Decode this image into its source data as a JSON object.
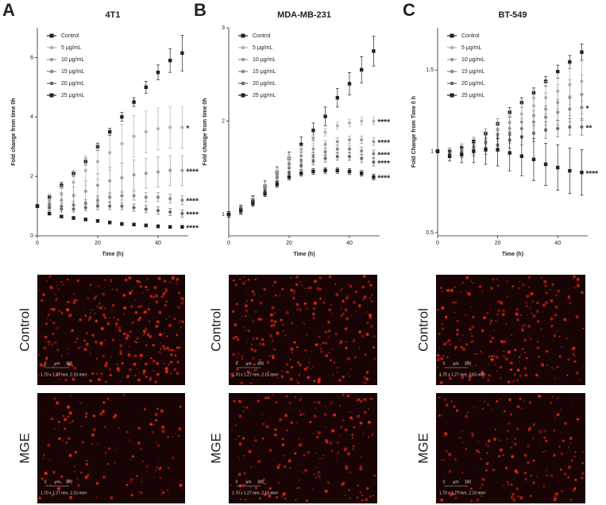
{
  "chart_data": [
    {
      "type": "line",
      "panel": "A",
      "title": "4T1",
      "x_label": "Time (h)",
      "y_label": "Fold change from time 0h",
      "x": [
        0,
        4,
        8,
        12,
        16,
        20,
        24,
        28,
        32,
        36,
        40,
        44,
        48
      ],
      "xlim": [
        0,
        50
      ],
      "xticks": [
        0,
        20,
        40
      ],
      "ylim": [
        0,
        7
      ],
      "yticks": [
        0,
        2,
        4,
        6
      ],
      "series": [
        {
          "name": "Control",
          "color": "#222222",
          "marker": "square",
          "values": [
            1,
            1.3,
            1.7,
            2.1,
            2.5,
            3.0,
            3.5,
            4.0,
            4.5,
            5.0,
            5.5,
            5.9,
            6.15
          ],
          "errors": [
            0.05,
            0.1,
            0.1,
            0.1,
            0.12,
            0.12,
            0.12,
            0.15,
            0.15,
            0.2,
            0.25,
            0.4,
            0.6
          ]
        },
        {
          "name": "5 μg/mL",
          "color": "#b0b0b0",
          "marker": "circle",
          "values": [
            1,
            1.2,
            1.4,
            1.8,
            2.2,
            2.5,
            2.8,
            3.1,
            3.35,
            3.5,
            3.6,
            3.65,
            3.65
          ],
          "errors": [
            0.05,
            0.2,
            0.3,
            0.4,
            0.5,
            0.6,
            0.6,
            0.65,
            0.7,
            0.7,
            0.7,
            0.7,
            0.7
          ],
          "annotation": "*"
        },
        {
          "name": "10 μg/mL",
          "color": "#9a9a9a",
          "marker": "circle",
          "values": [
            1,
            1.1,
            1.2,
            1.35,
            1.5,
            1.7,
            1.85,
            1.95,
            2.05,
            2.1,
            2.15,
            2.2,
            2.2
          ],
          "errors": [
            0.05,
            0.15,
            0.25,
            0.3,
            0.35,
            0.4,
            0.45,
            0.5,
            0.5,
            0.5,
            0.5,
            0.5,
            0.5
          ],
          "annotation": "****"
        },
        {
          "name": "15 μg/mL",
          "color": "#868686",
          "marker": "circle",
          "values": [
            1,
            1.0,
            1.0,
            1.05,
            1.1,
            1.2,
            1.3,
            1.35,
            1.35,
            1.3,
            1.3,
            1.25,
            1.2
          ],
          "errors": [
            0.05,
            0.1,
            0.1,
            0.12,
            0.12,
            0.15,
            0.15,
            0.15,
            0.15,
            0.15,
            0.15,
            0.15,
            0.15
          ],
          "annotation": "****"
        },
        {
          "name": "20 μg/mL",
          "color": "#666666",
          "marker": "circle",
          "values": [
            1,
            0.95,
            0.9,
            0.9,
            0.95,
            1.0,
            1.0,
            1.0,
            0.95,
            0.9,
            0.85,
            0.8,
            0.75
          ],
          "errors": [
            0.05,
            0.1,
            0.1,
            0.1,
            0.1,
            0.12,
            0.12,
            0.12,
            0.12,
            0.12,
            0.12,
            0.12,
            0.12
          ],
          "annotation": "****"
        },
        {
          "name": "25 μg/mL",
          "color": "#222222",
          "marker": "square",
          "values": [
            1,
            0.75,
            0.65,
            0.6,
            0.55,
            0.5,
            0.45,
            0.4,
            0.38,
            0.35,
            0.32,
            0.3,
            0.3
          ],
          "errors": [
            0.05,
            0.05,
            0.05,
            0.05,
            0.05,
            0.05,
            0.05,
            0.05,
            0.05,
            0.05,
            0.05,
            0.05,
            0.05
          ],
          "annotation": "****"
        }
      ]
    },
    {
      "type": "line",
      "panel": "B",
      "title": "MDA-MB-231",
      "x_label": "Time (h)",
      "y_label": "Fold change from time 0h",
      "x": [
        0,
        4,
        8,
        12,
        16,
        20,
        24,
        28,
        32,
        36,
        40,
        44,
        48
      ],
      "xlim": [
        0,
        50
      ],
      "xticks": [
        0,
        20,
        40
      ],
      "ylim": [
        0.77,
        3
      ],
      "yticks": [
        1,
        2,
        3
      ],
      "series": [
        {
          "name": "Control",
          "color": "#222222",
          "marker": "square",
          "values": [
            1,
            1.05,
            1.15,
            1.3,
            1.45,
            1.6,
            1.75,
            1.9,
            2.05,
            2.25,
            2.4,
            2.55,
            2.75
          ],
          "errors": [
            0.03,
            0.05,
            0.05,
            0.06,
            0.06,
            0.07,
            0.08,
            0.08,
            0.1,
            0.1,
            0.12,
            0.14,
            0.16
          ]
        },
        {
          "name": "5 μg/mL",
          "color": "#b0b0b0",
          "marker": "circle",
          "values": [
            1,
            1.05,
            1.15,
            1.3,
            1.45,
            1.6,
            1.7,
            1.8,
            1.88,
            1.95,
            1.98,
            2.0,
            2.0
          ],
          "errors": [
            0.03,
            0.04,
            0.04,
            0.04,
            0.04,
            0.04,
            0.04,
            0.04,
            0.04,
            0.04,
            0.04,
            0.04,
            0.04
          ],
          "annotation": "****"
        },
        {
          "name": "10 μg/mL",
          "color": "#9a9a9a",
          "marker": "circle",
          "values": [
            1,
            1.05,
            1.15,
            1.28,
            1.42,
            1.55,
            1.63,
            1.7,
            1.75,
            1.78,
            1.8,
            1.8,
            1.78
          ],
          "errors": [
            0.03,
            0.04,
            0.04,
            0.04,
            0.04,
            0.04,
            0.04,
            0.04,
            0.04,
            0.04,
            0.04,
            0.04,
            0.04
          ],
          "annotation": "****"
        },
        {
          "name": "15 μg/mL",
          "color": "#868686",
          "marker": "circle",
          "values": [
            1,
            1.05,
            1.15,
            1.27,
            1.4,
            1.5,
            1.58,
            1.63,
            1.67,
            1.7,
            1.7,
            1.68,
            1.65
          ],
          "errors": [
            0.03,
            0.04,
            0.04,
            0.04,
            0.04,
            0.04,
            0.04,
            0.04,
            0.04,
            0.04,
            0.04,
            0.04,
            0.04
          ],
          "annotation": "****"
        },
        {
          "name": "20 μg/mL",
          "color": "#666666",
          "marker": "circle",
          "values": [
            1,
            1.04,
            1.13,
            1.25,
            1.35,
            1.45,
            1.52,
            1.57,
            1.6,
            1.62,
            1.62,
            1.6,
            1.56
          ],
          "errors": [
            0.03,
            0.04,
            0.04,
            0.04,
            0.04,
            0.04,
            0.04,
            0.04,
            0.04,
            0.04,
            0.04,
            0.04,
            0.04
          ],
          "annotation": "****"
        },
        {
          "name": "25 μg/mL",
          "color": "#222222",
          "marker": "square",
          "values": [
            1,
            1.04,
            1.12,
            1.22,
            1.32,
            1.4,
            1.44,
            1.46,
            1.47,
            1.47,
            1.46,
            1.44,
            1.4
          ],
          "errors": [
            0.03,
            0.03,
            0.03,
            0.03,
            0.03,
            0.03,
            0.03,
            0.03,
            0.03,
            0.03,
            0.03,
            0.03,
            0.03
          ],
          "annotation": "****"
        }
      ]
    },
    {
      "type": "line",
      "panel": "C",
      "title": "BT-549",
      "x_label": "Time (h)",
      "y_label": "Fold Change from Time 0 h",
      "x": [
        0,
        4,
        8,
        12,
        16,
        20,
        24,
        28,
        32,
        36,
        40,
        44,
        48
      ],
      "xlim": [
        0,
        50
      ],
      "xticks": [
        0,
        20,
        40
      ],
      "ylim": [
        0.48,
        1.76
      ],
      "yticks": [
        0.5,
        1.0,
        1.5
      ],
      "series": [
        {
          "name": "Control",
          "color": "#222222",
          "marker": "square",
          "values": [
            1,
            1.0,
            1.02,
            1.06,
            1.11,
            1.17,
            1.24,
            1.3,
            1.36,
            1.43,
            1.49,
            1.55,
            1.61
          ],
          "errors": [
            0.01,
            0.02,
            0.02,
            0.02,
            0.03,
            0.03,
            0.03,
            0.03,
            0.03,
            0.03,
            0.04,
            0.04,
            0.05
          ]
        },
        {
          "name": "5 μg/mL",
          "color": "#b0b0b0",
          "marker": "circle",
          "values": [
            1,
            0.99,
            1.01,
            1.04,
            1.08,
            1.13,
            1.18,
            1.23,
            1.28,
            1.33,
            1.37,
            1.41,
            1.43
          ],
          "errors": [
            0.01,
            0.03,
            0.04,
            0.05,
            0.06,
            0.07,
            0.08,
            0.09,
            0.1,
            0.1,
            0.11,
            0.12,
            0.12
          ]
        },
        {
          "name": "10 μg/mL",
          "color": "#9a9a9a",
          "marker": "circle",
          "values": [
            1,
            0.99,
            1.0,
            1.03,
            1.06,
            1.1,
            1.14,
            1.18,
            1.22,
            1.26,
            1.3,
            1.33,
            1.35
          ],
          "errors": [
            0.01,
            0.03,
            0.04,
            0.05,
            0.06,
            0.07,
            0.08,
            0.09,
            0.1,
            0.1,
            0.11,
            0.11,
            0.12
          ]
        },
        {
          "name": "15 μg/mL",
          "color": "#868686",
          "marker": "circle",
          "values": [
            1,
            0.99,
            1.0,
            1.02,
            1.05,
            1.08,
            1.11,
            1.14,
            1.18,
            1.21,
            1.24,
            1.26,
            1.27
          ],
          "errors": [
            0.01,
            0.02,
            0.03,
            0.04,
            0.05,
            0.05,
            0.06,
            0.06,
            0.07,
            0.07,
            0.08,
            0.08,
            0.08
          ],
          "annotation": "*"
        },
        {
          "name": "20 μg/mL",
          "color": "#666666",
          "marker": "circle",
          "values": [
            1,
            0.98,
            0.99,
            1.0,
            1.02,
            1.04,
            1.07,
            1.09,
            1.11,
            1.13,
            1.14,
            1.15,
            1.15
          ],
          "errors": [
            0.01,
            0.02,
            0.03,
            0.03,
            0.04,
            0.04,
            0.05,
            0.05,
            0.05,
            0.05,
            0.05,
            0.05,
            0.05
          ],
          "annotation": "**"
        },
        {
          "name": "25 μg/mL",
          "color": "#222222",
          "marker": "square",
          "values": [
            1,
            0.97,
            0.98,
            1.0,
            1.01,
            1.01,
            0.99,
            0.97,
            0.95,
            0.92,
            0.9,
            0.88,
            0.87
          ],
          "errors": [
            0.01,
            0.03,
            0.05,
            0.07,
            0.09,
            0.1,
            0.11,
            0.12,
            0.13,
            0.13,
            0.14,
            0.14,
            0.14
          ],
          "annotation": "****"
        }
      ]
    }
  ],
  "micrographs": [
    {
      "panels": [
        {
          "label": "Control",
          "scale_start": "0",
          "scale_unit": "μm",
          "scale_end": "300",
          "dimensions": "1.70 x 1.27 mm, 2.15 mm²"
        },
        {
          "label": "MGE",
          "scale_start": "0",
          "scale_unit": "μm",
          "scale_end": "300",
          "dimensions": "1.70 x 1.27 mm, 2.15 mm²"
        }
      ]
    },
    {
      "panels": [
        {
          "label": "Control",
          "scale_start": "0",
          "scale_unit": "μm",
          "scale_end": "300",
          "dimensions": "1.70 x 1.27 mm, 2.15 mm²"
        },
        {
          "label": "MGE",
          "scale_start": "0",
          "scale_unit": "μm",
          "scale_end": "300",
          "dimensions": "1.70 x 1.27 mm, 2.15 mm²"
        }
      ]
    },
    {
      "panels": [
        {
          "label": "Control",
          "scale_start": "0",
          "scale_unit": "μm",
          "scale_end": "300",
          "dimensions": "1.70 x 1.27 mm, 2.15 mm²"
        },
        {
          "label": "MGE",
          "scale_start": "0",
          "scale_unit": "μm",
          "scale_end": "300",
          "dimensions": "1.70 x 1.27 mm, 2.15 mm²"
        }
      ]
    }
  ]
}
